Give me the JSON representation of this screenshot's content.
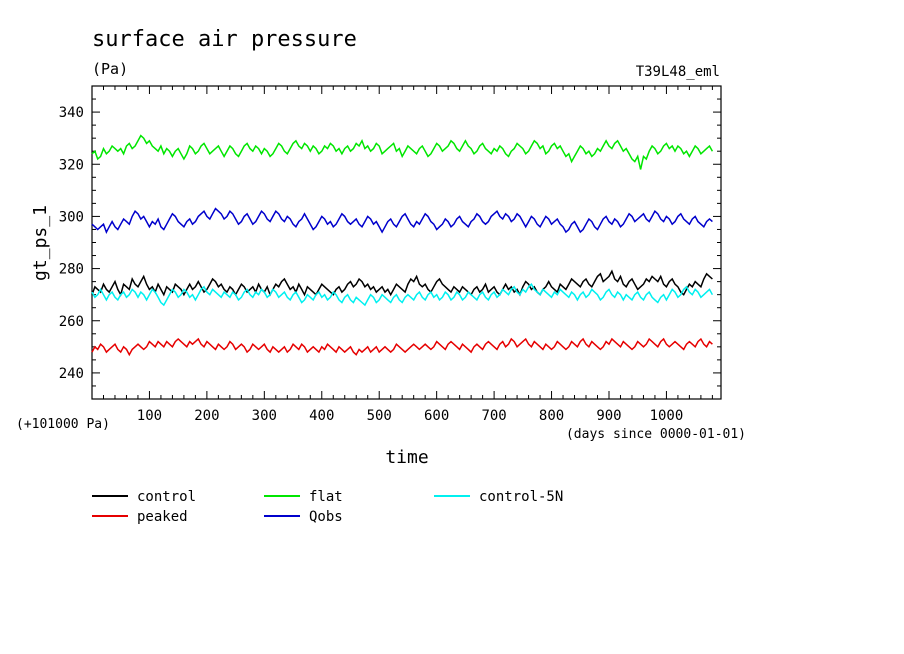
{
  "chart_data": {
    "type": "line",
    "title": "surface air pressure",
    "units": "(Pa)",
    "experiment": "T39L48_eml",
    "ylabel": "gt_ps_1",
    "xlabel": "time",
    "y_offset_note": "(+101000 Pa)",
    "x_units_note": "(days since 0000-01-01)",
    "xlim": [
      0,
      1095
    ],
    "ylim": [
      230,
      350
    ],
    "x_ticks": [
      100,
      200,
      300,
      400,
      500,
      600,
      700,
      800,
      900,
      1000
    ],
    "y_ticks": [
      240,
      260,
      280,
      300,
      320,
      340
    ],
    "x_step": 5,
    "series": [
      {
        "name": "control",
        "color": "#000000",
        "values": [
          270,
          273,
          272,
          271,
          274,
          272,
          271,
          273,
          275,
          272,
          270,
          274,
          273,
          272,
          276,
          274,
          273,
          275,
          277,
          274,
          272,
          273,
          271,
          274,
          272,
          270,
          273,
          272,
          271,
          274,
          273,
          272,
          270,
          272,
          274,
          272,
          273,
          275,
          273,
          271,
          272,
          274,
          276,
          275,
          273,
          274,
          272,
          271,
          273,
          272,
          270,
          272,
          274,
          273,
          271,
          272,
          273,
          271,
          274,
          272,
          271,
          273,
          270,
          272,
          274,
          273,
          275,
          276,
          274,
          272,
          273,
          271,
          274,
          272,
          270,
          273,
          272,
          271,
          270,
          272,
          274,
          273,
          272,
          271,
          270,
          272,
          273,
          271,
          272,
          274,
          275,
          273,
          274,
          276,
          275,
          273,
          274,
          272,
          273,
          271,
          272,
          273,
          271,
          272,
          270,
          272,
          274,
          273,
          272,
          271,
          274,
          276,
          275,
          277,
          274,
          273,
          274,
          272,
          271,
          273,
          275,
          276,
          274,
          273,
          272,
          271,
          273,
          272,
          271,
          273,
          272,
          271,
          270,
          272,
          273,
          271,
          272,
          274,
          271,
          272,
          273,
          271,
          270,
          272,
          274,
          272,
          273,
          271,
          272,
          270,
          273,
          275,
          274,
          272,
          273,
          271,
          270,
          272,
          273,
          275,
          273,
          272,
          271,
          274,
          273,
          272,
          274,
          276,
          275,
          274,
          273,
          275,
          276,
          274,
          273,
          275,
          277,
          278,
          275,
          276,
          277,
          279,
          276,
          275,
          277,
          274,
          273,
          275,
          276,
          274,
          272,
          273,
          274,
          276,
          275,
          277,
          276,
          275,
          277,
          274,
          273,
          275,
          276,
          274,
          273,
          271,
          270,
          272,
          274,
          273,
          275,
          274,
          273,
          276,
          278,
          277,
          276
        ]
      },
      {
        "name": "flat",
        "color": "#00e600",
        "values": [
          324,
          325,
          322,
          323,
          326,
          324,
          325,
          327,
          326,
          325,
          326,
          324,
          327,
          328,
          326,
          327,
          329,
          331,
          330,
          328,
          329,
          327,
          326,
          325,
          327,
          324,
          326,
          325,
          323,
          325,
          326,
          324,
          322,
          324,
          327,
          326,
          324,
          325,
          327,
          328,
          326,
          324,
          325,
          326,
          327,
          325,
          323,
          325,
          327,
          326,
          324,
          323,
          325,
          327,
          328,
          326,
          325,
          327,
          326,
          324,
          326,
          325,
          323,
          324,
          326,
          328,
          327,
          325,
          324,
          326,
          328,
          329,
          327,
          326,
          328,
          327,
          325,
          327,
          326,
          324,
          325,
          327,
          326,
          328,
          327,
          325,
          326,
          324,
          326,
          327,
          325,
          326,
          328,
          327,
          329,
          326,
          327,
          325,
          326,
          328,
          327,
          324,
          325,
          326,
          327,
          328,
          325,
          326,
          323,
          325,
          327,
          326,
          325,
          324,
          326,
          327,
          325,
          323,
          324,
          326,
          328,
          327,
          325,
          326,
          327,
          329,
          328,
          326,
          325,
          327,
          329,
          327,
          326,
          324,
          325,
          327,
          328,
          326,
          325,
          324,
          326,
          325,
          327,
          326,
          324,
          323,
          325,
          326,
          328,
          327,
          326,
          324,
          325,
          327,
          329,
          328,
          326,
          327,
          324,
          325,
          327,
          328,
          326,
          327,
          325,
          323,
          324,
          321,
          323,
          325,
          327,
          326,
          324,
          325,
          323,
          324,
          326,
          325,
          327,
          329,
          327,
          326,
          328,
          329,
          327,
          325,
          326,
          324,
          322,
          321,
          323,
          318,
          323,
          322,
          325,
          327,
          326,
          324,
          325,
          327,
          328,
          326,
          327,
          325,
          327,
          326,
          324,
          325,
          323,
          325,
          327,
          326,
          324,
          325,
          326,
          327,
          325
        ]
      },
      {
        "name": "Qobs",
        "color": "#0000cc",
        "values": [
          297,
          296,
          295,
          296,
          297,
          294,
          296,
          298,
          296,
          295,
          297,
          299,
          298,
          297,
          300,
          302,
          301,
          299,
          300,
          298,
          296,
          298,
          297,
          299,
          296,
          295,
          297,
          299,
          301,
          300,
          298,
          297,
          296,
          298,
          299,
          297,
          298,
          300,
          301,
          302,
          300,
          299,
          301,
          303,
          302,
          301,
          299,
          300,
          302,
          301,
          299,
          297,
          298,
          300,
          301,
          299,
          297,
          298,
          300,
          302,
          301,
          299,
          298,
          300,
          302,
          301,
          299,
          298,
          300,
          299,
          297,
          296,
          298,
          299,
          301,
          299,
          297,
          295,
          296,
          298,
          300,
          299,
          297,
          298,
          296,
          297,
          299,
          301,
          300,
          298,
          297,
          298,
          299,
          297,
          296,
          298,
          300,
          299,
          297,
          298,
          296,
          294,
          296,
          298,
          299,
          297,
          296,
          298,
          300,
          301,
          299,
          297,
          296,
          298,
          297,
          299,
          301,
          300,
          298,
          297,
          295,
          296,
          297,
          299,
          298,
          296,
          297,
          299,
          300,
          298,
          297,
          296,
          298,
          299,
          301,
          300,
          298,
          297,
          298,
          300,
          301,
          302,
          300,
          299,
          301,
          300,
          298,
          299,
          301,
          300,
          298,
          296,
          298,
          300,
          299,
          297,
          296,
          298,
          300,
          299,
          297,
          298,
          299,
          297,
          296,
          294,
          295,
          297,
          298,
          296,
          294,
          295,
          297,
          299,
          298,
          296,
          295,
          297,
          299,
          300,
          298,
          297,
          299,
          298,
          296,
          297,
          299,
          301,
          300,
          298,
          299,
          300,
          301,
          299,
          298,
          300,
          302,
          301,
          299,
          298,
          300,
          299,
          297,
          298,
          300,
          301,
          299,
          298,
          297,
          299,
          300,
          298,
          297,
          296,
          298,
          299,
          298
        ]
      },
      {
        "name": "peaked",
        "color": "#e60000",
        "values": [
          248,
          250,
          249,
          251,
          250,
          248,
          249,
          250,
          251,
          249,
          248,
          250,
          249,
          247,
          249,
          250,
          251,
          250,
          249,
          250,
          252,
          251,
          250,
          252,
          251,
          250,
          252,
          251,
          250,
          252,
          253,
          252,
          251,
          250,
          252,
          251,
          252,
          253,
          251,
          250,
          252,
          251,
          250,
          249,
          251,
          250,
          249,
          250,
          252,
          251,
          249,
          250,
          251,
          250,
          248,
          249,
          251,
          250,
          249,
          250,
          251,
          249,
          248,
          250,
          249,
          248,
          249,
          250,
          248,
          249,
          251,
          250,
          249,
          251,
          250,
          248,
          249,
          250,
          249,
          248,
          250,
          249,
          251,
          250,
          249,
          248,
          250,
          249,
          248,
          249,
          250,
          248,
          247,
          249,
          248,
          249,
          250,
          248,
          249,
          250,
          248,
          249,
          250,
          249,
          248,
          249,
          251,
          250,
          249,
          248,
          249,
          250,
          251,
          250,
          249,
          250,
          251,
          250,
          249,
          250,
          252,
          251,
          250,
          249,
          251,
          252,
          251,
          250,
          249,
          251,
          250,
          249,
          248,
          250,
          251,
          250,
          249,
          251,
          252,
          251,
          250,
          249,
          251,
          252,
          250,
          251,
          253,
          252,
          250,
          251,
          252,
          253,
          251,
          250,
          252,
          251,
          250,
          249,
          251,
          250,
          249,
          250,
          252,
          251,
          250,
          249,
          250,
          252,
          251,
          250,
          252,
          253,
          251,
          250,
          252,
          251,
          250,
          249,
          250,
          252,
          251,
          253,
          252,
          251,
          250,
          252,
          251,
          250,
          249,
          250,
          252,
          251,
          250,
          251,
          253,
          252,
          251,
          250,
          252,
          253,
          251,
          250,
          251,
          252,
          251,
          250,
          249,
          251,
          252,
          251,
          250,
          252,
          253,
          251,
          250,
          252,
          251
        ]
      },
      {
        "name": "control-5N",
        "color": "#00f0f0",
        "values": [
          271,
          269,
          270,
          272,
          270,
          268,
          270,
          271,
          269,
          268,
          270,
          271,
          269,
          270,
          272,
          271,
          269,
          271,
          270,
          268,
          270,
          272,
          271,
          269,
          267,
          266,
          268,
          270,
          272,
          271,
          269,
          270,
          272,
          271,
          269,
          270,
          268,
          270,
          272,
          273,
          271,
          270,
          272,
          271,
          270,
          269,
          271,
          270,
          269,
          271,
          270,
          268,
          269,
          271,
          272,
          270,
          269,
          271,
          270,
          272,
          271,
          269,
          270,
          272,
          271,
          269,
          270,
          271,
          269,
          268,
          270,
          271,
          269,
          267,
          268,
          270,
          269,
          268,
          270,
          271,
          269,
          270,
          268,
          269,
          271,
          270,
          268,
          267,
          269,
          270,
          268,
          267,
          269,
          268,
          267,
          266,
          268,
          270,
          269,
          267,
          268,
          270,
          269,
          268,
          267,
          269,
          270,
          268,
          267,
          269,
          270,
          269,
          268,
          270,
          271,
          269,
          268,
          270,
          271,
          269,
          270,
          268,
          269,
          271,
          270,
          268,
          269,
          271,
          270,
          268,
          269,
          271,
          270,
          269,
          268,
          270,
          271,
          269,
          268,
          270,
          271,
          269,
          270,
          272,
          271,
          270,
          272,
          273,
          271,
          270,
          272,
          271,
          273,
          274,
          272,
          271,
          270,
          272,
          271,
          270,
          269,
          271,
          270,
          272,
          271,
          270,
          269,
          271,
          270,
          268,
          270,
          271,
          269,
          270,
          272,
          271,
          270,
          268,
          269,
          271,
          272,
          270,
          269,
          271,
          270,
          268,
          270,
          269,
          268,
          270,
          271,
          269,
          268,
          270,
          271,
          269,
          268,
          267,
          269,
          270,
          268,
          270,
          272,
          271,
          269,
          270,
          272,
          273,
          271,
          270,
          272,
          271,
          269,
          270,
          271,
          272,
          270
        ]
      }
    ],
    "legend": {
      "placement": "bottom",
      "entries": [
        {
          "label": "control",
          "color": "#000000"
        },
        {
          "label": "flat",
          "color": "#00e600"
        },
        {
          "label": "control-5N",
          "color": "#00f0f0"
        },
        {
          "label": "peaked",
          "color": "#e60000"
        },
        {
          "label": "Qobs",
          "color": "#0000cc"
        }
      ]
    }
  }
}
